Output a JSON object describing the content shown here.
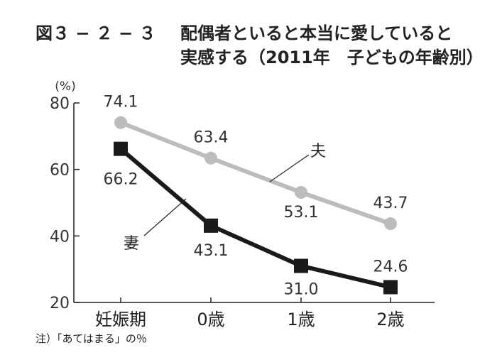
{
  "figure": {
    "number": "図３ − ２ − ３",
    "title_line1": "配偶者といると本当に愛していると",
    "title_line2": "実感する（2011年　子どもの年齢別）"
  },
  "note": "注）「あてはまる」の％",
  "chart_data": {
    "type": "line",
    "title": "配偶者といると本当に愛していると実感する（2011年　子どもの年齢別）",
    "ylabel": "(%)",
    "xlabel": "",
    "ylim": [
      20,
      80
    ],
    "yticks": [
      20,
      40,
      60,
      80
    ],
    "categories": [
      "妊娠期",
      "0歳",
      "1歳",
      "2歳"
    ],
    "grid": false,
    "legend": "inline-labels",
    "series": [
      {
        "name": "夫",
        "values": [
          74.1,
          63.4,
          53.1,
          43.7
        ],
        "color": "#bcbcbc",
        "marker": "circle"
      },
      {
        "name": "妻",
        "values": [
          66.2,
          43.1,
          31.0,
          24.6
        ],
        "color": "#1a1a1a",
        "marker": "square"
      }
    ]
  }
}
